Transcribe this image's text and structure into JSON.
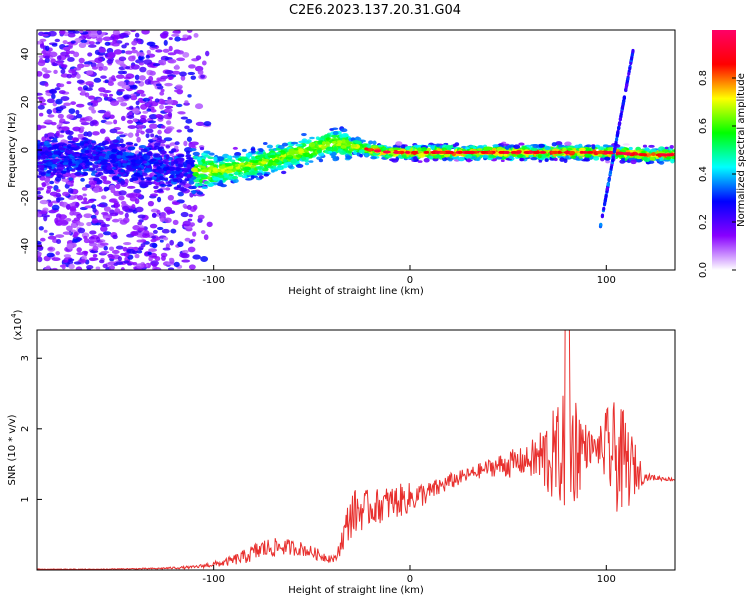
{
  "title": "C2E6.2023.137.20.31.G04",
  "chart_data": [
    {
      "type": "heatmap",
      "xlabel": "Height of straight line (km)",
      "ylabel": "Frequency (Hz)",
      "xlim": [
        -190,
        135
      ],
      "ylim": [
        -50,
        50
      ],
      "x_ticks": [
        -100,
        0,
        100
      ],
      "y_ticks": [
        -40,
        -20,
        0,
        20,
        40
      ],
      "colorbar": {
        "label": "Normalized spectral amplitude",
        "range": [
          0.0,
          1.0
        ],
        "ticks": [
          "0.0",
          "0.2",
          "0.4",
          "0.6",
          "0.8"
        ],
        "colormap": [
          "#ff0066",
          "#ff0000",
          "#ffff00",
          "#00ff00",
          "#00ffff",
          "#0000ff",
          "#8800ff",
          "#ffffff"
        ]
      },
      "ridge": {
        "x": [
          -190,
          -160,
          -140,
          -120,
          -100,
          -80,
          -60,
          -40,
          -30,
          -20,
          -10,
          0,
          20,
          40,
          60,
          80,
          100,
          120,
          135
        ],
        "y": [
          -3,
          -3,
          -5,
          -8,
          -9,
          -6,
          -2,
          3,
          2,
          0,
          -1,
          -1,
          -1,
          -1,
          -1,
          -1,
          -1,
          -2,
          -2
        ]
      },
      "streak": {
        "x": [
          97,
          114
        ],
        "y": [
          -32,
          43
        ]
      }
    },
    {
      "type": "line",
      "xlabel": "Height of straight line (km)",
      "ylabel": "SNR (10 * v/v)",
      "y_multiplier": "(x10",
      "y_multiplier_exp": "4",
      "y_multiplier_close": ")",
      "xlim": [
        -190,
        135
      ],
      "ylim": [
        0,
        3.4
      ],
      "x_ticks": [
        -100,
        0,
        100
      ],
      "y_ticks": [
        1,
        2,
        3
      ],
      "color": "#e8302e",
      "series": [
        {
          "x": [
            -190,
            -160,
            -130,
            -110,
            -95,
            -85,
            -75,
            -65,
            -55,
            -45,
            -38,
            -30,
            -25,
            -20,
            -10,
            0,
            10,
            20,
            30,
            40,
            50,
            60,
            70,
            75,
            80,
            85,
            90,
            95,
            100,
            105,
            110,
            115,
            120,
            135
          ],
          "y": [
            0.01,
            0.01,
            0.02,
            0.04,
            0.1,
            0.18,
            0.3,
            0.33,
            0.3,
            0.2,
            0.15,
            0.8,
            0.85,
            0.88,
            0.95,
            1.02,
            1.1,
            1.25,
            1.35,
            1.45,
            1.5,
            1.55,
            1.6,
            1.62,
            1.7,
            1.75,
            1.75,
            1.72,
            1.7,
            1.6,
            1.5,
            1.42,
            1.32,
            1.28
          ],
          "noise": [
            0.005,
            0.005,
            0.01,
            0.02,
            0.05,
            0.1,
            0.15,
            0.12,
            0.1,
            0.08,
            0.05,
            0.35,
            0.3,
            0.25,
            0.25,
            0.22,
            0.15,
            0.12,
            0.1,
            0.12,
            0.2,
            0.2,
            0.6,
            0.7,
            0.9,
            0.8,
            0.3,
            0.15,
            0.6,
            0.8,
            0.7,
            0.35,
            0.05,
            0.02
          ]
        }
      ]
    }
  ]
}
